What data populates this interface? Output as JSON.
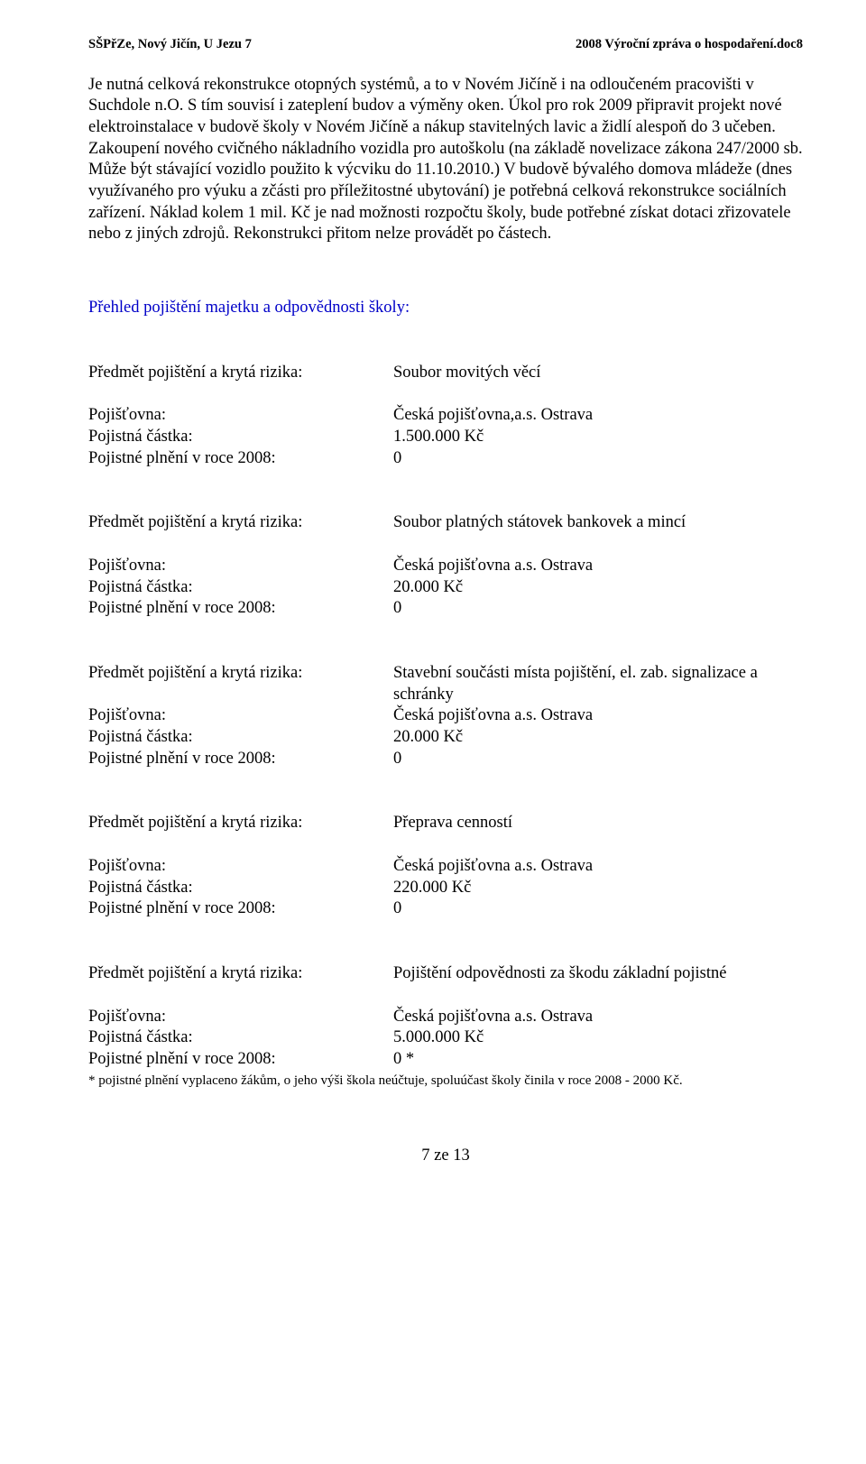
{
  "header": {
    "left": "SŠPřZe, Nový Jičín, U Jezu 7",
    "right": "2008 Výroční zpráva o hospodaření.doc8"
  },
  "paragraph": "Je nutná celková rekonstrukce otopných systémů, a to v Novém Jičíně i na odloučeném pracovišti v Suchdole n.O. S tím souvisí i zateplení budov a výměny oken. Úkol pro rok 2009 připravit projekt nové elektroinstalace v budově školy v Novém Jičíně a nákup stavitelných lavic a židlí alespoň do 3 učeben. Zakoupení nového cvičného nákladního vozidla pro autoškolu (na základě novelizace zákona 247/2000 sb. Může být stávající vozidlo použito k výcviku do 11.10.2010.) V budově bývalého domova mládeže (dnes využívaného pro výuku a zčásti pro příležitostné ubytování) je potřebná celková rekonstrukce sociálních zařízení. Náklad kolem 1 mil. Kč je nad možnosti rozpočtu školy, bude potřebné získat dotaci zřizovatele nebo z jiných zdrojů. Rekonstrukci přitom nelze provádět po částech.",
  "section_heading": "Přehled pojištění majetku a odpovědnosti školy:",
  "labels": {
    "subject": "Předmět pojištění a krytá rizika:",
    "insurer": "Pojišťovna:",
    "amount": "Pojistná částka:",
    "payout": "Pojistné plnění v roce 2008:"
  },
  "items": [
    {
      "subject": "Soubor movitých věcí",
      "insurer": "Česká pojišťovna,a.s. Ostrava",
      "amount": "1.500.000 Kč",
      "payout": "0"
    },
    {
      "subject": "Soubor platných státovek bankovek a mincí",
      "insurer": "Česká pojišťovna a.s. Ostrava",
      "amount": "20.000 Kč",
      "payout": "0"
    },
    {
      "subject": "Stavební součásti místa pojištění, el. zab. signalizace a schránky",
      "insurer": "Česká pojišťovna a.s. Ostrava",
      "amount": "20.000 Kč",
      "payout": "0"
    },
    {
      "subject": "Přeprava cenností",
      "insurer": "Česká pojišťovna a.s. Ostrava",
      "amount": "220.000 Kč",
      "payout": "0"
    },
    {
      "subject": "Pojištění odpovědnosti za škodu  základní pojistné",
      "insurer": "Česká pojišťovna a.s. Ostrava",
      "amount": "5.000.000 Kč",
      "payout": "0 *"
    }
  ],
  "footnote": "*  pojistné plnění vyplaceno žákům, o jeho výši škola neúčtuje, spoluúčast školy činila v roce 2008 -  2000 Kč.",
  "page_number": "7 ze 13",
  "colors": {
    "heading": "#0000c8",
    "text": "#000000",
    "background": "#ffffff"
  },
  "typography": {
    "body_fontsize_pt": 14,
    "header_fontsize_pt": 11,
    "footnote_fontsize_pt": 11,
    "font_family": "Times New Roman"
  }
}
